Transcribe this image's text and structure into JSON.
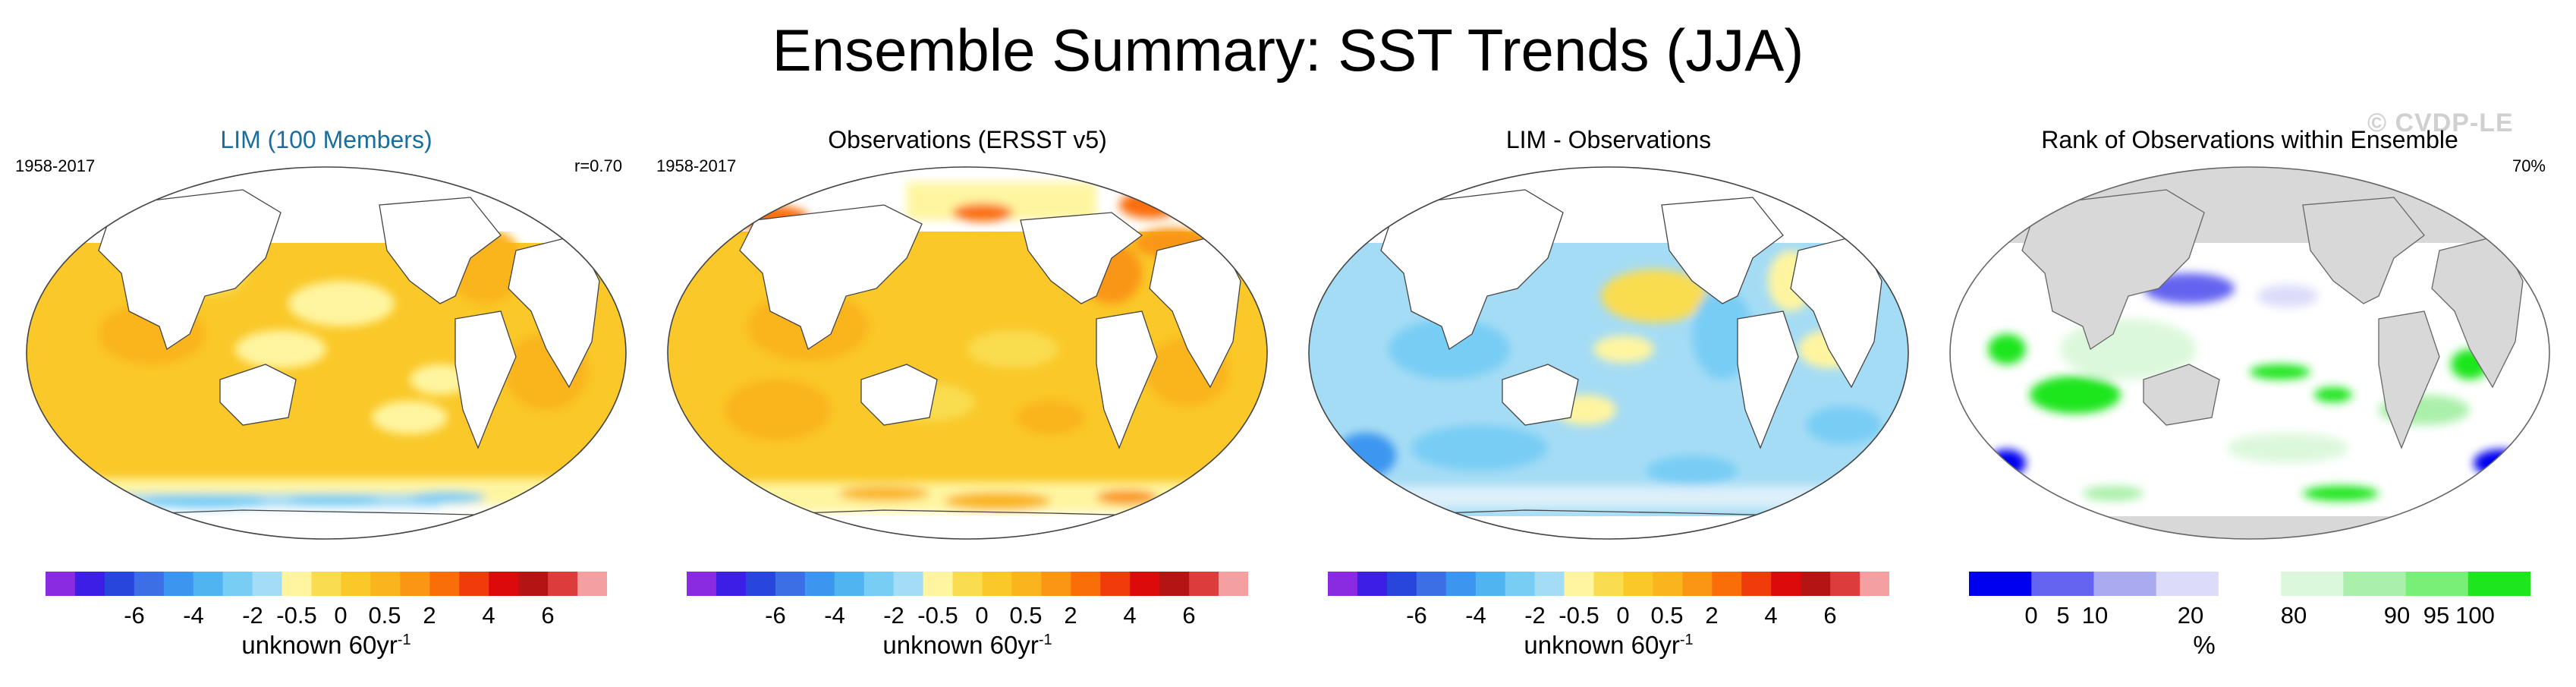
{
  "title": "Ensemble Summary: SST Trends (JJA)",
  "watermark": "© CVDP-LE",
  "panels": [
    {
      "title": "LIM (100 Members)",
      "left_note": "1958-2017",
      "right_note": "r=0.70"
    },
    {
      "title": "Observations (ERSST v5)",
      "left_note": "1958-2017",
      "right_note": ""
    },
    {
      "title": "LIM - Observations",
      "left_note": "",
      "right_note": ""
    },
    {
      "title": "Rank of Observations within Ensemble",
      "left_note": "",
      "right_note": "70%"
    }
  ],
  "trend_colorbar": {
    "colors": [
      "#8a2be2",
      "#3c1ee6",
      "#2846dc",
      "#3c6ee6",
      "#3c96f0",
      "#50b4f0",
      "#78cdf5",
      "#a5dcf5",
      "#fff5a0",
      "#fadc50",
      "#fac828",
      "#fab41e",
      "#fa9614",
      "#fa6e0a",
      "#f03c0a",
      "#dc0a0a",
      "#b41414",
      "#dc3c3c",
      "#f5a0a0"
    ],
    "ticks": [
      "-6",
      "-4",
      "-2",
      "-0.5",
      "0",
      "0.5",
      "2",
      "4",
      "6"
    ],
    "label": "unknown 60yr",
    "label_sup": "-1"
  },
  "rank_colorbar": {
    "colors": [
      "#0000f0",
      "#6464f0",
      "#aaaaf0",
      "#dcdcfa",
      "#ffffff",
      "#dcf8dc",
      "#aaf0aa",
      "#78f078",
      "#1ee61e"
    ],
    "ticks": [
      "0",
      "5",
      "10",
      "20",
      "80",
      "90",
      "95",
      "100"
    ],
    "label": "%"
  }
}
